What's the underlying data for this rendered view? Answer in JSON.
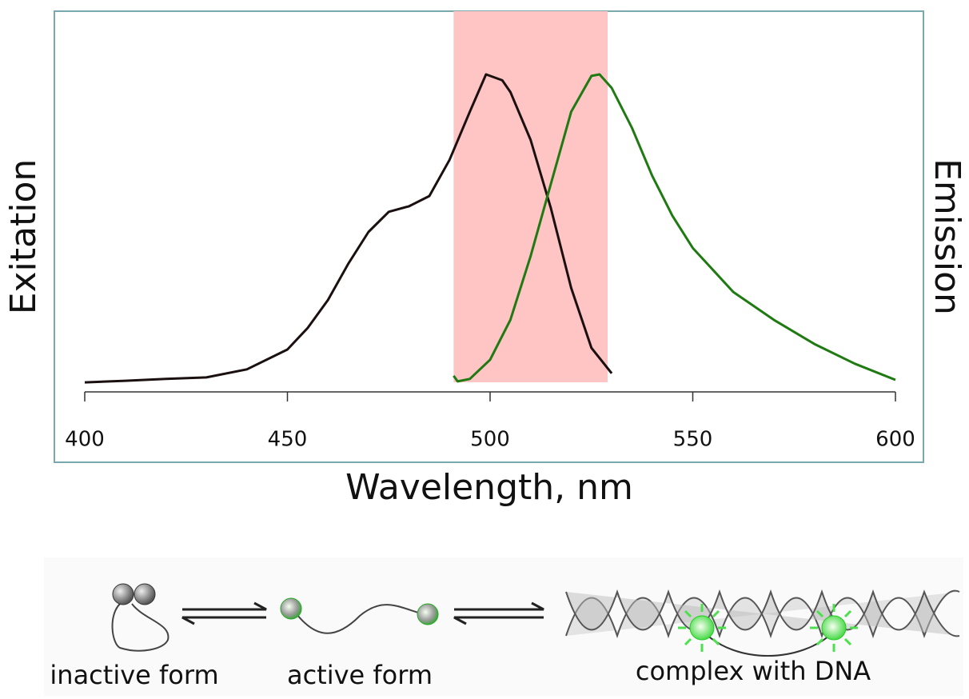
{
  "chart_data": {
    "type": "line",
    "xlabel": "Wavelength, nm",
    "xlim": [
      400,
      600
    ],
    "xticks": [
      400,
      450,
      500,
      550,
      600
    ],
    "ylim": [
      0,
      1
    ],
    "highlight": {
      "range": [
        491,
        529
      ],
      "color": "#ffc4c4"
    },
    "series": [
      {
        "name": "Exitation",
        "color": "#1a1010",
        "x": [
          400,
          410,
          420,
          430,
          440,
          450,
          455,
          460,
          465,
          470,
          475,
          480,
          485,
          490,
          495,
          499,
          503,
          505,
          510,
          515,
          520,
          525,
          530
        ],
        "values": [
          0.005,
          0.01,
          0.016,
          0.021,
          0.047,
          0.111,
          0.181,
          0.271,
          0.388,
          0.491,
          0.556,
          0.574,
          0.607,
          0.724,
          0.879,
          1.0,
          0.981,
          0.943,
          0.788,
          0.568,
          0.31,
          0.116,
          0.034
        ]
      },
      {
        "name": "Emission",
        "color": "#1f7a12",
        "x": [
          491,
          492,
          495,
          500,
          505,
          510,
          515,
          520,
          525,
          527,
          530,
          535,
          540,
          545,
          550,
          560,
          570,
          580,
          590,
          600
        ],
        "values": [
          0.026,
          0.008,
          0.016,
          0.078,
          0.207,
          0.413,
          0.646,
          0.879,
          0.995,
          1.0,
          0.956,
          0.827,
          0.672,
          0.543,
          0.439,
          0.297,
          0.207,
          0.129,
          0.065,
          0.013
        ]
      }
    ]
  },
  "diagram": {
    "labels": [
      "inactive form",
      "active form",
      "complex with DNA"
    ]
  }
}
